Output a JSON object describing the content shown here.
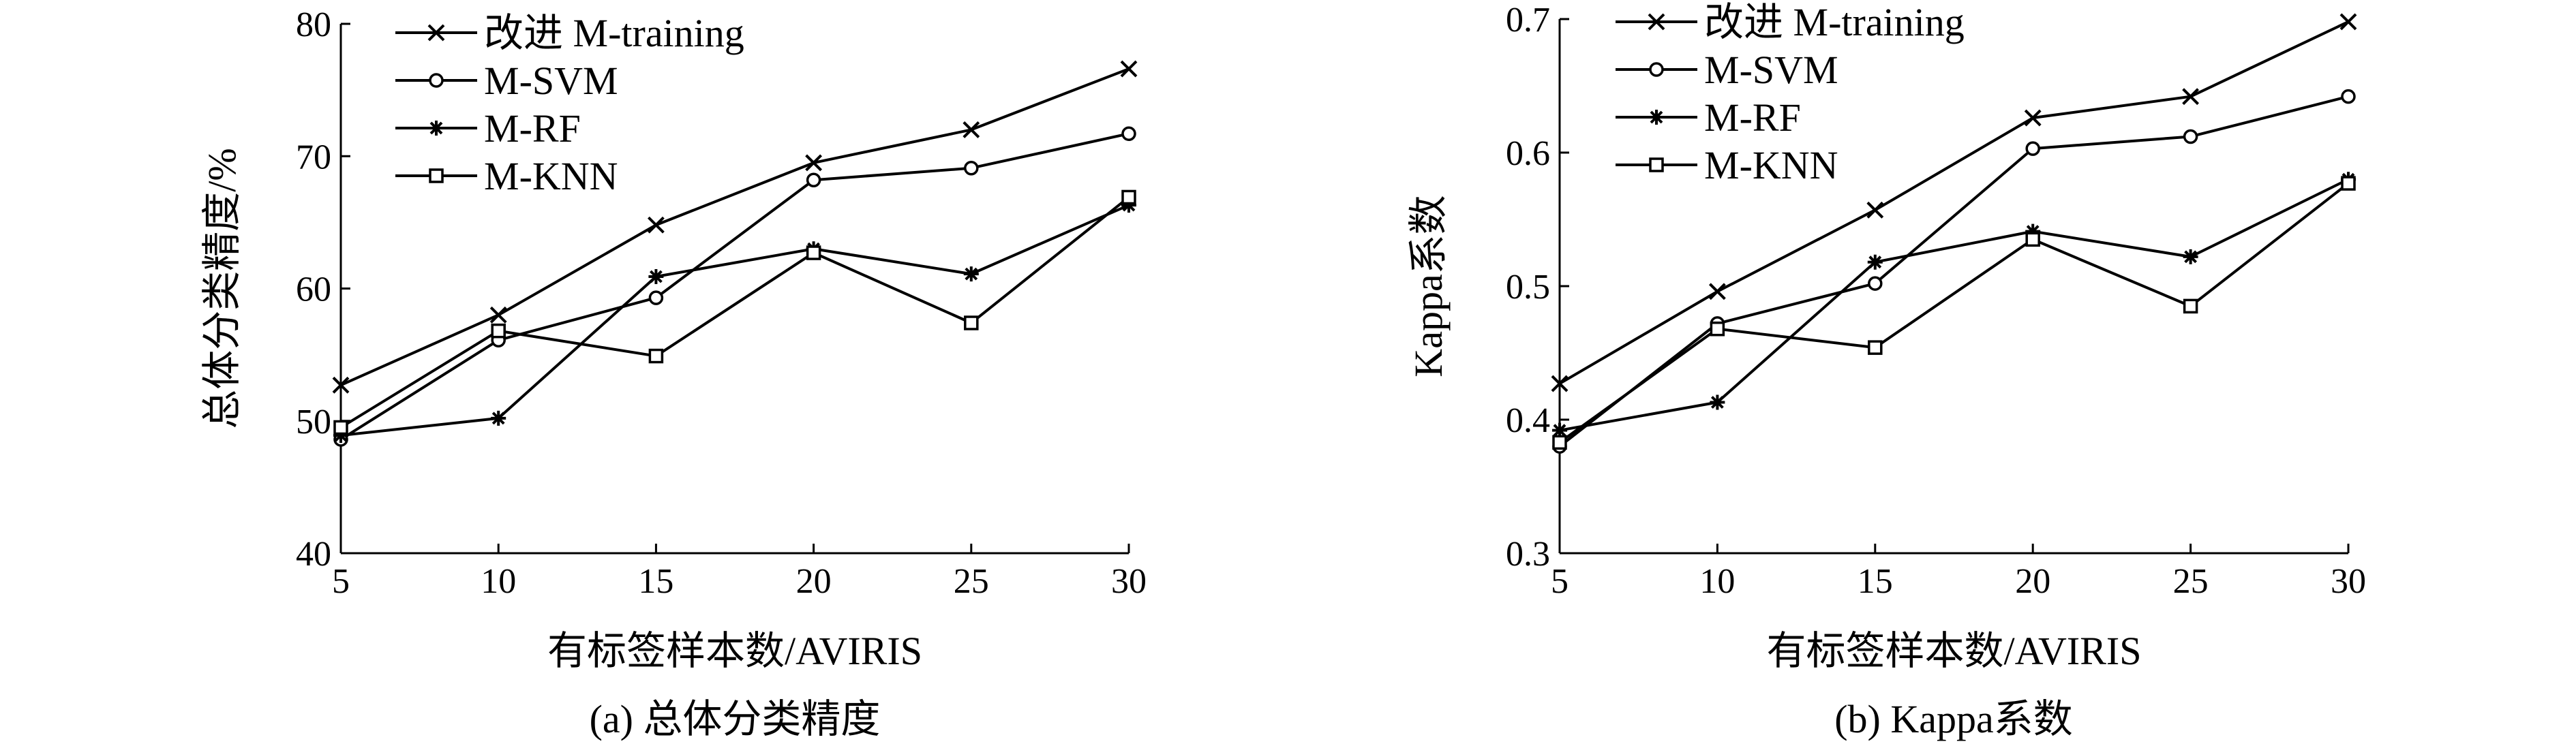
{
  "chart_data": [
    {
      "type": "line",
      "caption": "(a) 总体分类精度",
      "xlabel": "有标签样本数/AVIRIS",
      "ylabel": "总体分类精度/%",
      "x": [
        5,
        10,
        15,
        20,
        25,
        30
      ],
      "xlim": [
        5,
        30
      ],
      "ylim": [
        40,
        80
      ],
      "xticks": [
        "5",
        "10",
        "15",
        "20",
        "25",
        "30"
      ],
      "yticks": [
        "40",
        "50",
        "60",
        "70",
        "80"
      ],
      "legend_position": "top-left",
      "series": [
        {
          "name": "改进 M-training",
          "marker": "x",
          "values": [
            52.7,
            58.0,
            64.8,
            69.5,
            72.0,
            76.6
          ]
        },
        {
          "name": "M-SVM",
          "marker": "circle",
          "values": [
            48.6,
            56.1,
            59.3,
            68.2,
            69.1,
            71.7
          ]
        },
        {
          "name": "M-RF",
          "marker": "star",
          "values": [
            48.9,
            50.2,
            60.9,
            63.0,
            61.1,
            66.3
          ]
        },
        {
          "name": "M-KNN",
          "marker": "square",
          "values": [
            49.5,
            56.8,
            54.9,
            62.7,
            57.4,
            66.9
          ]
        }
      ]
    },
    {
      "type": "line",
      "caption": "(b) Kappa系数",
      "xlabel": "有标签样本数/AVIRIS",
      "ylabel": "Kappa系数",
      "x": [
        5,
        10,
        15,
        20,
        25,
        30
      ],
      "xlim": [
        5,
        30
      ],
      "ylim": [
        0.3,
        0.7
      ],
      "xticks": [
        "5",
        "10",
        "15",
        "20",
        "25",
        "30"
      ],
      "yticks": [
        "0.3",
        "0.4",
        "0.5",
        "0.6",
        "0.7"
      ],
      "legend_position": "top-left",
      "series": [
        {
          "name": "改进 M-training",
          "marker": "x",
          "values": [
            0.427,
            0.496,
            0.557,
            0.626,
            0.642,
            0.698
          ]
        },
        {
          "name": "M-SVM",
          "marker": "circle",
          "values": [
            0.38,
            0.472,
            0.502,
            0.603,
            0.612,
            0.642
          ]
        },
        {
          "name": "M-RF",
          "marker": "star",
          "values": [
            0.392,
            0.413,
            0.518,
            0.541,
            0.522,
            0.58
          ]
        },
        {
          "name": "M-KNN",
          "marker": "square",
          "values": [
            0.383,
            0.468,
            0.454,
            0.535,
            0.485,
            0.577
          ]
        }
      ]
    }
  ]
}
